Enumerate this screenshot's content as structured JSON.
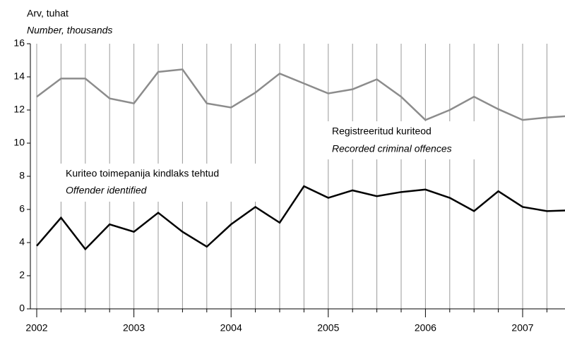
{
  "chart_data": {
    "type": "line",
    "unit_label": "Arv, tuhat",
    "unit_label_en": "Number, thousands",
    "categories": [
      "2002",
      null,
      null,
      null,
      "2003",
      null,
      null,
      null,
      "2004",
      null,
      null,
      null,
      "2005",
      null,
      null,
      null,
      "2006",
      null,
      null,
      null,
      "2007",
      null,
      null
    ],
    "series": [
      {
        "name": "Registreeritud kuriteod",
        "name_en": "Recorded criminal offences",
        "color": "#8c8c8c",
        "values": [
          12.8,
          13.9,
          13.9,
          12.7,
          12.4,
          14.3,
          14.45,
          12.4,
          12.15,
          13.05,
          14.2,
          13.6,
          13.0,
          13.25,
          13.85,
          12.8,
          11.4,
          12.0,
          12.8,
          12.05,
          11.4,
          11.55,
          11.65
        ]
      },
      {
        "name": "Kuriteo toimepanija kindlaks tehtud",
        "name_en": "Offender identified",
        "color": "#000000",
        "values": [
          3.8,
          5.5,
          3.6,
          5.1,
          4.65,
          5.8,
          4.65,
          3.75,
          5.1,
          6.15,
          5.2,
          7.4,
          6.7,
          7.15,
          6.8,
          7.05,
          7.2,
          6.7,
          5.9,
          7.1,
          6.15,
          5.9,
          5.95
        ]
      }
    ],
    "ylim": [
      0,
      16
    ],
    "yticks": [
      0,
      2,
      4,
      6,
      8,
      10,
      12,
      14,
      16
    ],
    "grid": true
  }
}
